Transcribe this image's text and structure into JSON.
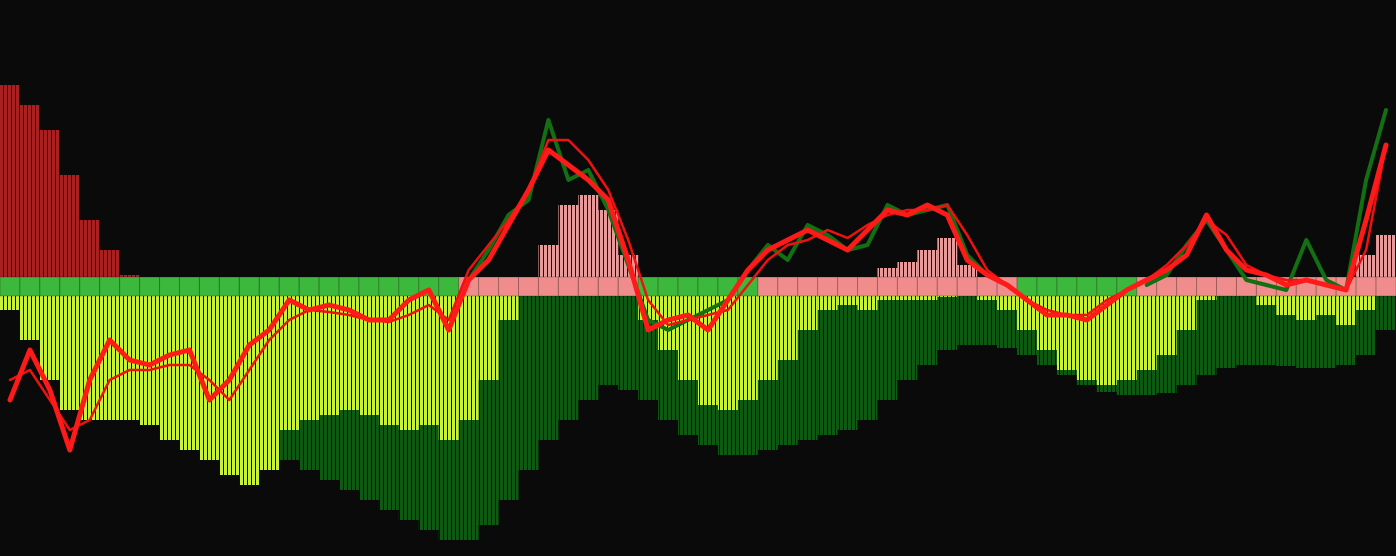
{
  "chart_data": {
    "type": "indicator",
    "ylim": [
      -279,
      277
    ],
    "series": [
      {
        "kind": "bars",
        "color": "#0f5a12",
        "values": [
          0,
          0,
          0,
          0,
          0,
          0,
          0,
          0,
          0,
          0,
          0,
          0,
          0,
          0,
          -183,
          -193,
          -203,
          -213,
          -223,
          -233,
          -243,
          -253,
          -263,
          -263,
          -248,
          -223,
          -193,
          -163,
          -143,
          -123,
          -108,
          -113,
          -123,
          -143,
          -158,
          -168,
          -178,
          -178,
          -173,
          -168,
          -163,
          -158,
          -153,
          -143,
          -123,
          -103,
          -88,
          -73,
          -68,
          -68,
          -71,
          -78,
          -88,
          -98,
          -108,
          -115,
          -118,
          -118,
          -116,
          -108,
          -98,
          -91,
          -88,
          -88,
          -89,
          -91,
          -91,
          -88,
          -78,
          -53
        ]
      },
      {
        "kind": "bars",
        "color": "#c8f23a",
        "values": [
          -33,
          -63,
          -103,
          -133,
          -143,
          -143,
          -143,
          -148,
          -163,
          -173,
          -183,
          -198,
          -208,
          -193,
          -153,
          -143,
          -138,
          -133,
          -138,
          -148,
          -153,
          -148,
          -163,
          -143,
          -103,
          -43,
          0,
          0,
          0,
          0,
          0,
          0,
          -43,
          -73,
          -103,
          -128,
          -133,
          -123,
          -103,
          -83,
          -53,
          -33,
          -28,
          -33,
          -23,
          -23,
          -23,
          -20,
          0,
          -23,
          -33,
          -53,
          -73,
          -93,
          -103,
          -108,
          -103,
          -93,
          -78,
          -53,
          -23,
          0,
          0,
          -28,
          -38,
          -43,
          -38,
          -48,
          -33,
          0
        ]
      },
      {
        "kind": "bars",
        "color": "#a82020",
        "values": [
          192,
          172,
          147,
          102,
          57,
          27,
          2,
          0,
          0,
          0,
          0,
          0,
          0,
          0,
          0,
          0,
          0,
          0,
          0,
          0,
          0,
          0,
          0,
          0,
          0,
          0,
          0,
          0,
          0,
          0,
          0,
          0,
          0,
          0,
          0,
          0,
          0,
          0,
          0,
          0,
          0,
          0,
          0,
          0,
          0,
          0,
          0,
          0,
          0,
          0,
          0,
          0,
          0,
          0,
          0,
          0,
          0,
          0,
          0,
          0,
          0,
          0,
          0,
          0,
          0,
          0,
          0,
          0,
          0,
          0
        ]
      },
      {
        "kind": "bars",
        "color": "#e89a9a",
        "values": [
          0,
          0,
          0,
          0,
          0,
          0,
          0,
          0,
          0,
          0,
          0,
          0,
          0,
          0,
          0,
          0,
          0,
          0,
          0,
          0,
          0,
          0,
          0,
          0,
          0,
          0,
          0,
          32,
          72,
          82,
          67,
          22,
          0,
          0,
          0,
          0,
          0,
          0,
          0,
          0,
          0,
          0,
          0,
          0,
          9,
          15,
          27,
          39,
          12,
          0,
          0,
          0,
          0,
          0,
          0,
          0,
          0,
          0,
          0,
          0,
          0,
          0,
          0,
          0,
          0,
          0,
          0,
          0,
          22,
          42
        ]
      },
      {
        "kind": "strip",
        "color_positive": "#f08c8c",
        "color_negative": "#3cb83c",
        "values": [
          -1,
          -1,
          -1,
          -1,
          -1,
          -1,
          -1,
          -1,
          -1,
          -1,
          -1,
          -1,
          -1,
          -1,
          -1,
          -1,
          -1,
          -1,
          -1,
          -1,
          -1,
          -1,
          -1,
          1,
          1,
          1,
          1,
          1,
          1,
          1,
          1,
          1,
          -1,
          -1,
          -1,
          -1,
          -1,
          -1,
          1,
          1,
          1,
          1,
          1,
          1,
          1,
          1,
          1,
          1,
          1,
          1,
          1,
          -1,
          -1,
          -1,
          -1,
          -1,
          -1,
          1,
          1,
          1,
          1,
          1,
          1,
          1,
          1,
          1,
          1,
          1,
          1,
          1
        ]
      },
      {
        "kind": "line",
        "color": "#127012",
        "width": 4,
        "values": [
          null,
          null,
          null,
          null,
          null,
          null,
          null,
          null,
          null,
          null,
          null,
          null,
          null,
          null,
          null,
          null,
          null,
          null,
          null,
          null,
          null,
          null,
          null,
          -3,
          27,
          62,
          77,
          157,
          97,
          107,
          67,
          12,
          -43,
          -53,
          -43,
          -33,
          -23,
          7,
          32,
          17,
          52,
          42,
          27,
          32,
          72,
          62,
          67,
          72,
          22,
          2,
          -8,
          null,
          null,
          null,
          null,
          null,
          null,
          -8,
          2,
          32,
          57,
          27,
          -3,
          -8,
          -13,
          37,
          -3,
          -13,
          97,
          167
        ]
      },
      {
        "kind": "line",
        "color": "#ee1111",
        "width": 2.5,
        "values": [
          -103,
          -93,
          -123,
          -153,
          -143,
          -103,
          -93,
          -93,
          -88,
          -88,
          -103,
          -123,
          -93,
          -63,
          -43,
          -33,
          -35,
          -38,
          -43,
          -45,
          -38,
          -28,
          -43,
          7,
          32,
          57,
          87,
          137,
          137,
          117,
          87,
          37,
          -23,
          -48,
          -43,
          -38,
          -33,
          -8,
          17,
          32,
          37,
          47,
          39,
          52,
          62,
          67,
          67,
          72,
          42,
          7,
          -8,
          -23,
          -33,
          -38,
          -38,
          -23,
          -13,
          -3,
          12,
          32,
          57,
          42,
          12,
          2,
          -3,
          -3,
          -8,
          -13,
          27,
          132
        ]
      },
      {
        "kind": "line",
        "color": "#ff1a1a",
        "width": 5,
        "values": [
          -123,
          -73,
          -113,
          -173,
          -103,
          -63,
          -83,
          -88,
          -78,
          -73,
          -123,
          -103,
          -68,
          -53,
          -23,
          -33,
          -28,
          -33,
          -43,
          -43,
          -23,
          -13,
          -53,
          -3,
          17,
          52,
          87,
          127,
          112,
          97,
          77,
          17,
          -53,
          -43,
          -38,
          -53,
          -23,
          7,
          27,
          37,
          47,
          37,
          27,
          47,
          67,
          62,
          72,
          62,
          17,
          2,
          -8,
          -23,
          -38,
          -38,
          -43,
          -28,
          -13,
          -3,
          7,
          22,
          62,
          27,
          7,
          2,
          -8,
          -3,
          -8,
          -13,
          57,
          132
        ]
      }
    ]
  }
}
